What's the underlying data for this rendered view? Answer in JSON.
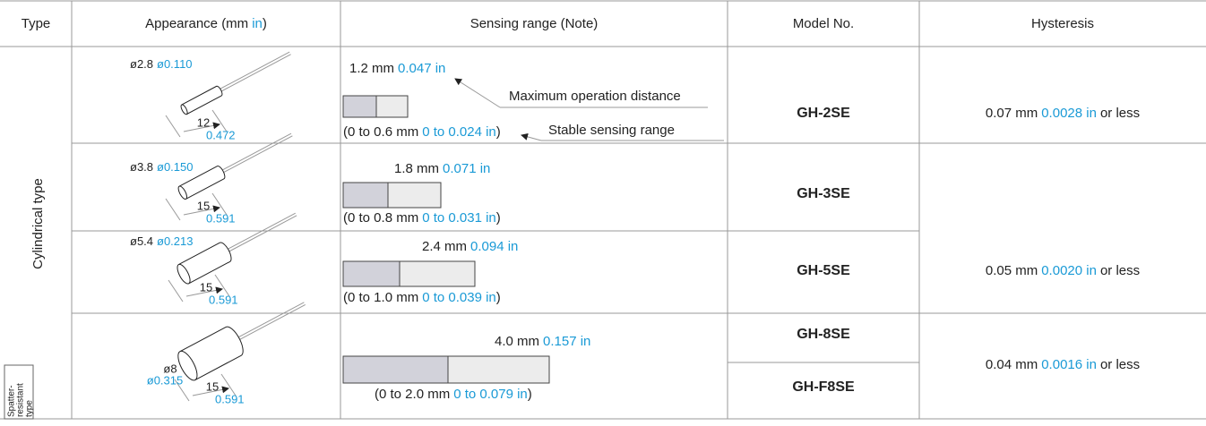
{
  "header": {
    "type": "Type",
    "appearance": {
      "text": "Appearance (mm",
      "in": "in",
      "close": ")"
    },
    "sensing": "Sensing range (Note)",
    "model": "Model No.",
    "hysteresis": "Hysteresis"
  },
  "type_labels": {
    "cylindrical": "Cylindrical type",
    "spatter": [
      "Spatter-",
      "resistant",
      "type"
    ]
  },
  "annotations": {
    "max": "Maximum operation distance",
    "stable": "Stable sensing range"
  },
  "rows": [
    {
      "models": [
        "GH-2SE"
      ],
      "diameter": {
        "mm": "ø2.8",
        "in": "ø0.110"
      },
      "length": {
        "mm": "12",
        "in": "0.472"
      },
      "max": {
        "mm": "1.2 mm",
        "in": "0.047 in"
      },
      "stable": {
        "mm": "(0 to 0.6 mm",
        "in": "0 to 0.024 in",
        "close": ")"
      }
    },
    {
      "models": [
        "GH-3SE"
      ],
      "diameter": {
        "mm": "ø3.8",
        "in": "ø0.150"
      },
      "length": {
        "mm": "15",
        "in": "0.591"
      },
      "max": {
        "mm": "1.8 mm",
        "in": "0.071 in"
      },
      "stable": {
        "mm": "(0 to 0.8 mm",
        "in": "0 to 0.031 in",
        "close": ")"
      }
    },
    {
      "models": [
        "GH-5SE"
      ],
      "diameter": {
        "mm": "ø5.4",
        "in": "ø0.213"
      },
      "length": {
        "mm": "15",
        "in": "0.591"
      },
      "max": {
        "mm": "2.4 mm",
        "in": "0.094 in"
      },
      "stable": {
        "mm": "(0 to 1.0 mm",
        "in": "0 to 0.039 in",
        "close": ")"
      }
    },
    {
      "models": [
        "GH-8SE",
        "GH-F8SE"
      ],
      "diameter": {
        "mm": "ø8",
        "in": "ø0.315"
      },
      "length": {
        "mm": "15",
        "in": "0.591"
      },
      "max": {
        "mm": "4.0 mm",
        "in": "0.157 in"
      },
      "stable": {
        "mm": "(0 to 2.0 mm",
        "in": "0 to 0.079 in",
        "close": ")"
      }
    }
  ],
  "hysteresis": [
    {
      "mm": "0.07 mm",
      "in": "0.0028 in",
      "suffix": "or less"
    },
    {
      "mm": "0.05 mm",
      "in": "0.0020 in",
      "suffix": "or less"
    },
    {
      "mm": "0.04 mm",
      "in": "0.0016 in",
      "suffix": "or less"
    }
  ]
}
